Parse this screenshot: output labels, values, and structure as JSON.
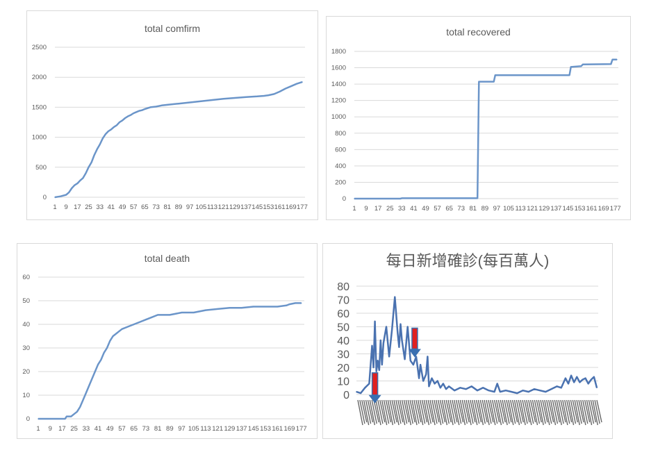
{
  "chart_data": [
    {
      "type": "line",
      "title": "total comfirm",
      "xlabel": "",
      "ylabel": "",
      "ylim": [
        0,
        2500
      ],
      "yticks": [
        "0",
        "500",
        "1000",
        "1500",
        "2000",
        "2500"
      ],
      "xticks": [
        "1",
        "9",
        "17",
        "25",
        "33",
        "41",
        "49",
        "57",
        "65",
        "73",
        "81",
        "89",
        "97",
        "105",
        "113",
        "121",
        "129",
        "137",
        "145",
        "153",
        "161",
        "169",
        "177"
      ],
      "grid": true,
      "x": [
        1,
        5,
        9,
        11,
        13,
        15,
        17,
        19,
        21,
        23,
        25,
        27,
        29,
        31,
        33,
        35,
        37,
        39,
        41,
        43,
        45,
        47,
        49,
        51,
        53,
        55,
        57,
        59,
        61,
        63,
        65,
        69,
        73,
        77,
        81,
        89,
        97,
        105,
        113,
        121,
        129,
        137,
        145,
        150,
        153,
        157,
        161,
        165,
        169,
        173,
        177
      ],
      "y": [
        0,
        15,
        40,
        80,
        150,
        200,
        230,
        280,
        320,
        400,
        500,
        580,
        700,
        800,
        880,
        980,
        1050,
        1100,
        1130,
        1170,
        1200,
        1250,
        1280,
        1320,
        1350,
        1370,
        1400,
        1420,
        1440,
        1450,
        1470,
        1500,
        1510,
        1530,
        1540,
        1560,
        1580,
        1600,
        1620,
        1640,
        1655,
        1670,
        1680,
        1690,
        1700,
        1720,
        1760,
        1810,
        1850,
        1890,
        1920
      ]
    },
    {
      "type": "line",
      "title": "total recovered",
      "xlabel": "",
      "ylabel": "",
      "ylim": [
        0,
        1800
      ],
      "yticks": [
        "0",
        "200",
        "400",
        "600",
        "800",
        "1000",
        "1200",
        "1400",
        "1600",
        "1800"
      ],
      "xticks": [
        "1",
        "9",
        "17",
        "25",
        "33",
        "41",
        "49",
        "57",
        "65",
        "73",
        "81",
        "89",
        "97",
        "105",
        "113",
        "121",
        "129",
        "137",
        "145",
        "153",
        "161",
        "169",
        "177"
      ],
      "grid": true,
      "x": [
        1,
        32,
        33,
        84,
        85,
        95,
        96,
        146,
        147,
        154,
        155,
        174,
        175,
        178
      ],
      "y": [
        0,
        0,
        5,
        5,
        1430,
        1430,
        1510,
        1510,
        1610,
        1620,
        1640,
        1645,
        1700,
        1700
      ]
    },
    {
      "type": "line",
      "title": "total death",
      "xlabel": "",
      "ylabel": "",
      "ylim": [
        0,
        60
      ],
      "yticks": [
        "0",
        "10",
        "20",
        "30",
        "40",
        "50",
        "60"
      ],
      "xticks": [
        "1",
        "9",
        "17",
        "25",
        "33",
        "41",
        "49",
        "57",
        "65",
        "73",
        "81",
        "89",
        "97",
        "105",
        "113",
        "121",
        "129",
        "137",
        "145",
        "153",
        "161",
        "169",
        "177"
      ],
      "grid": true,
      "x": [
        1,
        19,
        20,
        23,
        25,
        27,
        29,
        31,
        33,
        35,
        37,
        39,
        41,
        43,
        45,
        47,
        49,
        51,
        53,
        55,
        57,
        61,
        65,
        69,
        73,
        77,
        81,
        89,
        97,
        105,
        113,
        121,
        129,
        137,
        145,
        153,
        161,
        167,
        169,
        173,
        177
      ],
      "y": [
        0,
        0,
        1,
        1,
        2,
        3,
        5,
        8,
        11,
        14,
        17,
        20,
        23,
        25,
        28,
        30,
        33,
        35,
        36,
        37,
        38,
        39,
        40,
        41,
        42,
        43,
        44,
        44,
        45,
        45,
        46,
        46.5,
        47,
        47,
        47.5,
        47.5,
        47.5,
        48,
        48.5,
        49,
        49
      ]
    },
    {
      "type": "line",
      "title": "每日新增確診(每百萬人)",
      "xlabel": "",
      "ylabel": "",
      "ylim": [
        0,
        80
      ],
      "yticks": [
        "0",
        "10",
        "20",
        "30",
        "40",
        "50",
        "60",
        "70",
        "80"
      ],
      "grid": true,
      "x": [
        1,
        4,
        7,
        10,
        12,
        13,
        14,
        15,
        16,
        17,
        18,
        19,
        20,
        22,
        24,
        26,
        28,
        30,
        31,
        32,
        33,
        35,
        37,
        39,
        41,
        43,
        45,
        46,
        48,
        50,
        51,
        52,
        54,
        56,
        58,
        60,
        62,
        64,
        66,
        70,
        74,
        78,
        82,
        86,
        90,
        94,
        98,
        100,
        102,
        106,
        110,
        114,
        118,
        122,
        126,
        130,
        134,
        138,
        142,
        145,
        148,
        150,
        152,
        154,
        156,
        158,
        160,
        162,
        164,
        166,
        168,
        170
      ],
      "values": [
        2,
        1,
        5,
        8,
        36,
        20,
        54,
        17,
        25,
        18,
        40,
        22,
        38,
        50,
        28,
        48,
        72,
        45,
        35,
        52,
        40,
        26,
        50,
        25,
        22,
        28,
        12,
        22,
        10,
        15,
        28,
        6,
        12,
        8,
        10,
        5,
        8,
        4,
        6,
        3,
        5,
        4,
        6,
        3,
        5,
        3,
        2,
        8,
        2,
        3,
        2,
        1,
        3,
        2,
        4,
        3,
        2,
        4,
        6,
        5,
        12,
        8,
        14,
        9,
        13,
        9,
        11,
        12,
        8,
        11,
        13,
        5
      ],
      "arrows": [
        14,
        42
      ]
    }
  ]
}
